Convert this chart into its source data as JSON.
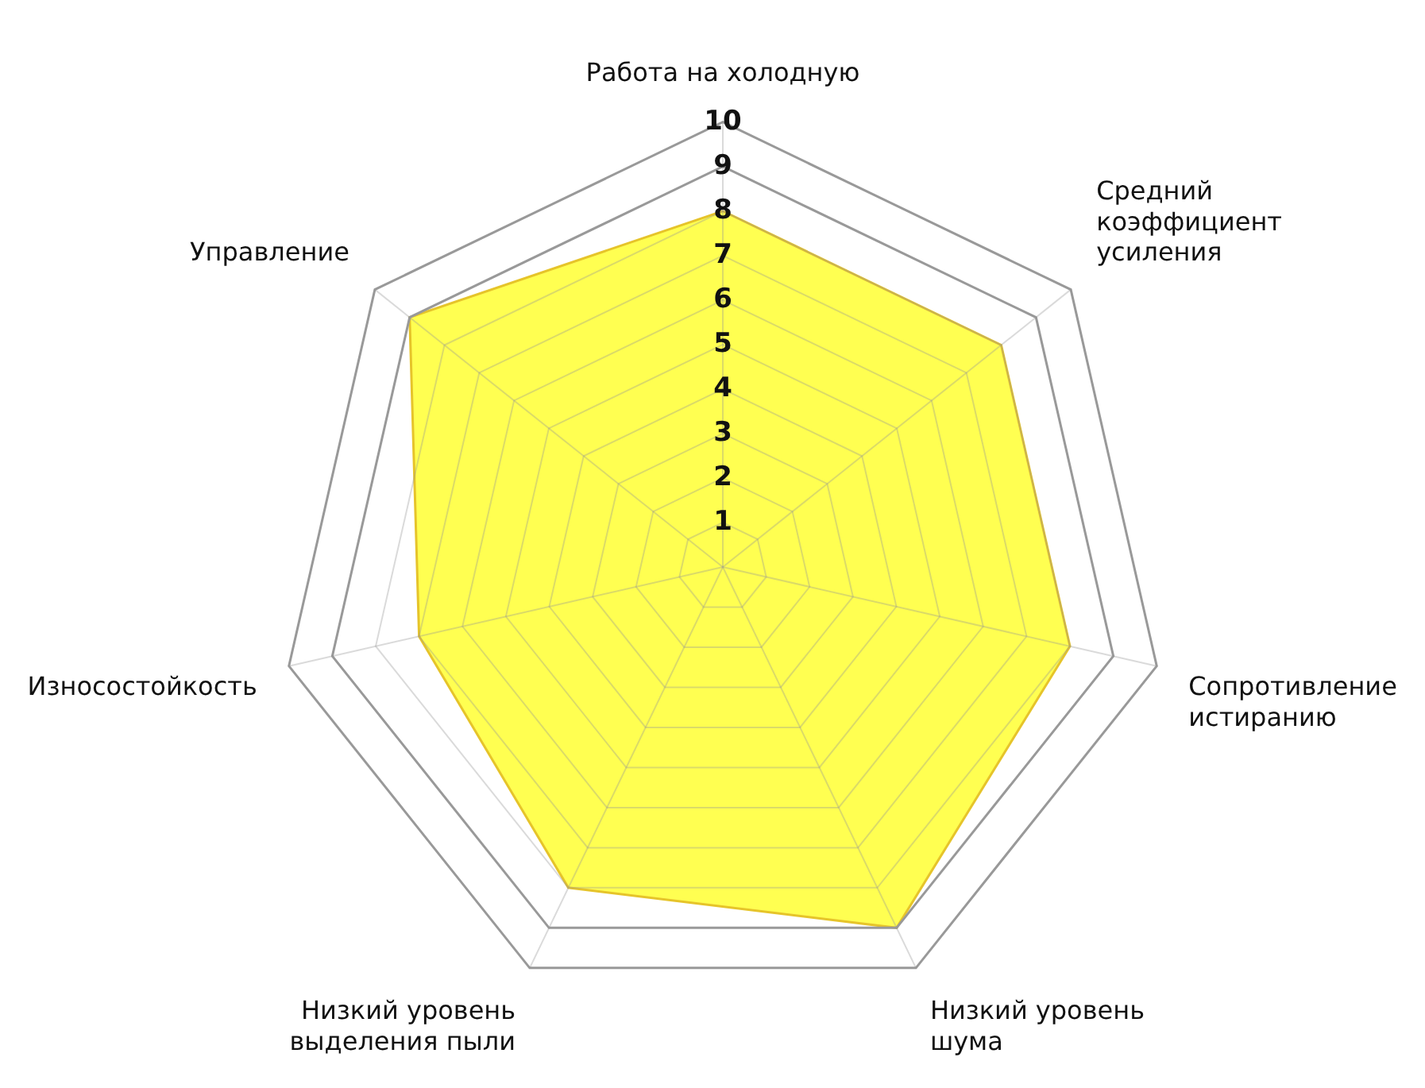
{
  "chart_data": {
    "type": "radar",
    "categories": [
      "Работа на холодную",
      "Средний коэффициент усиления",
      "Сопротивление истиранию",
      "Низкий уровень шума",
      "Низкий уровень выделения пыли",
      "Износостойкость",
      "Управление"
    ],
    "series": [
      {
        "color": "#ffff33",
        "values": [
          8,
          8,
          8,
          9,
          8,
          7,
          9
        ]
      }
    ],
    "ylim": [
      0,
      10
    ],
    "yticks": [
      1,
      2,
      3,
      4,
      5,
      6,
      7,
      8,
      9,
      10
    ],
    "grid": true,
    "legend": false,
    "marker": "none"
  }
}
